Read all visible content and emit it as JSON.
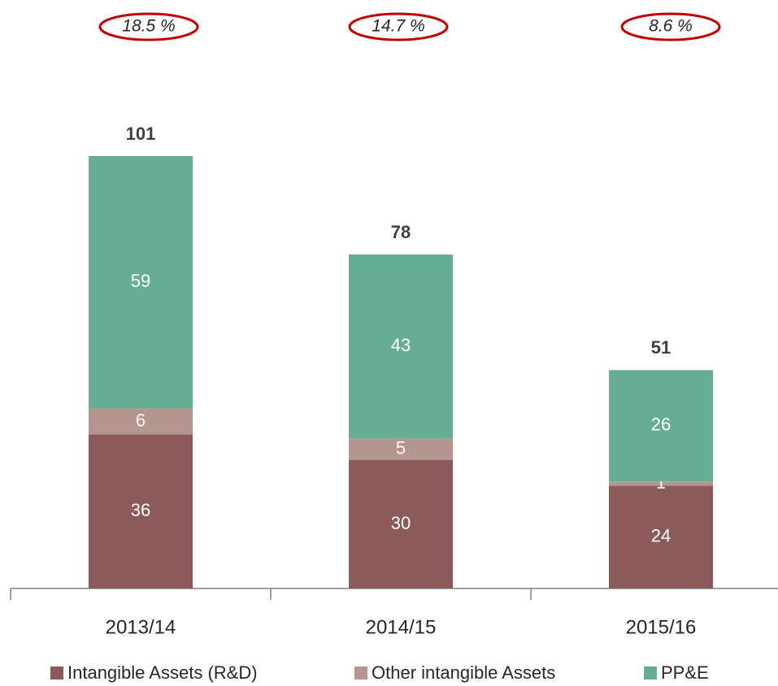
{
  "chart_data": {
    "type": "stacked_bar",
    "categories": [
      "2013/14",
      "2014/15",
      "2015/16"
    ],
    "series": [
      {
        "name": "Intangible Assets (R&D)",
        "color": "#8b5a5a",
        "values": [
          36,
          30,
          24
        ]
      },
      {
        "name": "Other intangible Assets",
        "color": "#b5958f",
        "values": [
          6,
          5,
          1
        ]
      },
      {
        "name": "PP&E",
        "color": "#67ad93",
        "values": [
          59,
          43,
          26
        ]
      }
    ],
    "totals": [
      101,
      78,
      51
    ],
    "annotations": [
      "18.5 %",
      "14.7 %",
      "8.6 %"
    ],
    "annotation_color": "#c00000"
  }
}
